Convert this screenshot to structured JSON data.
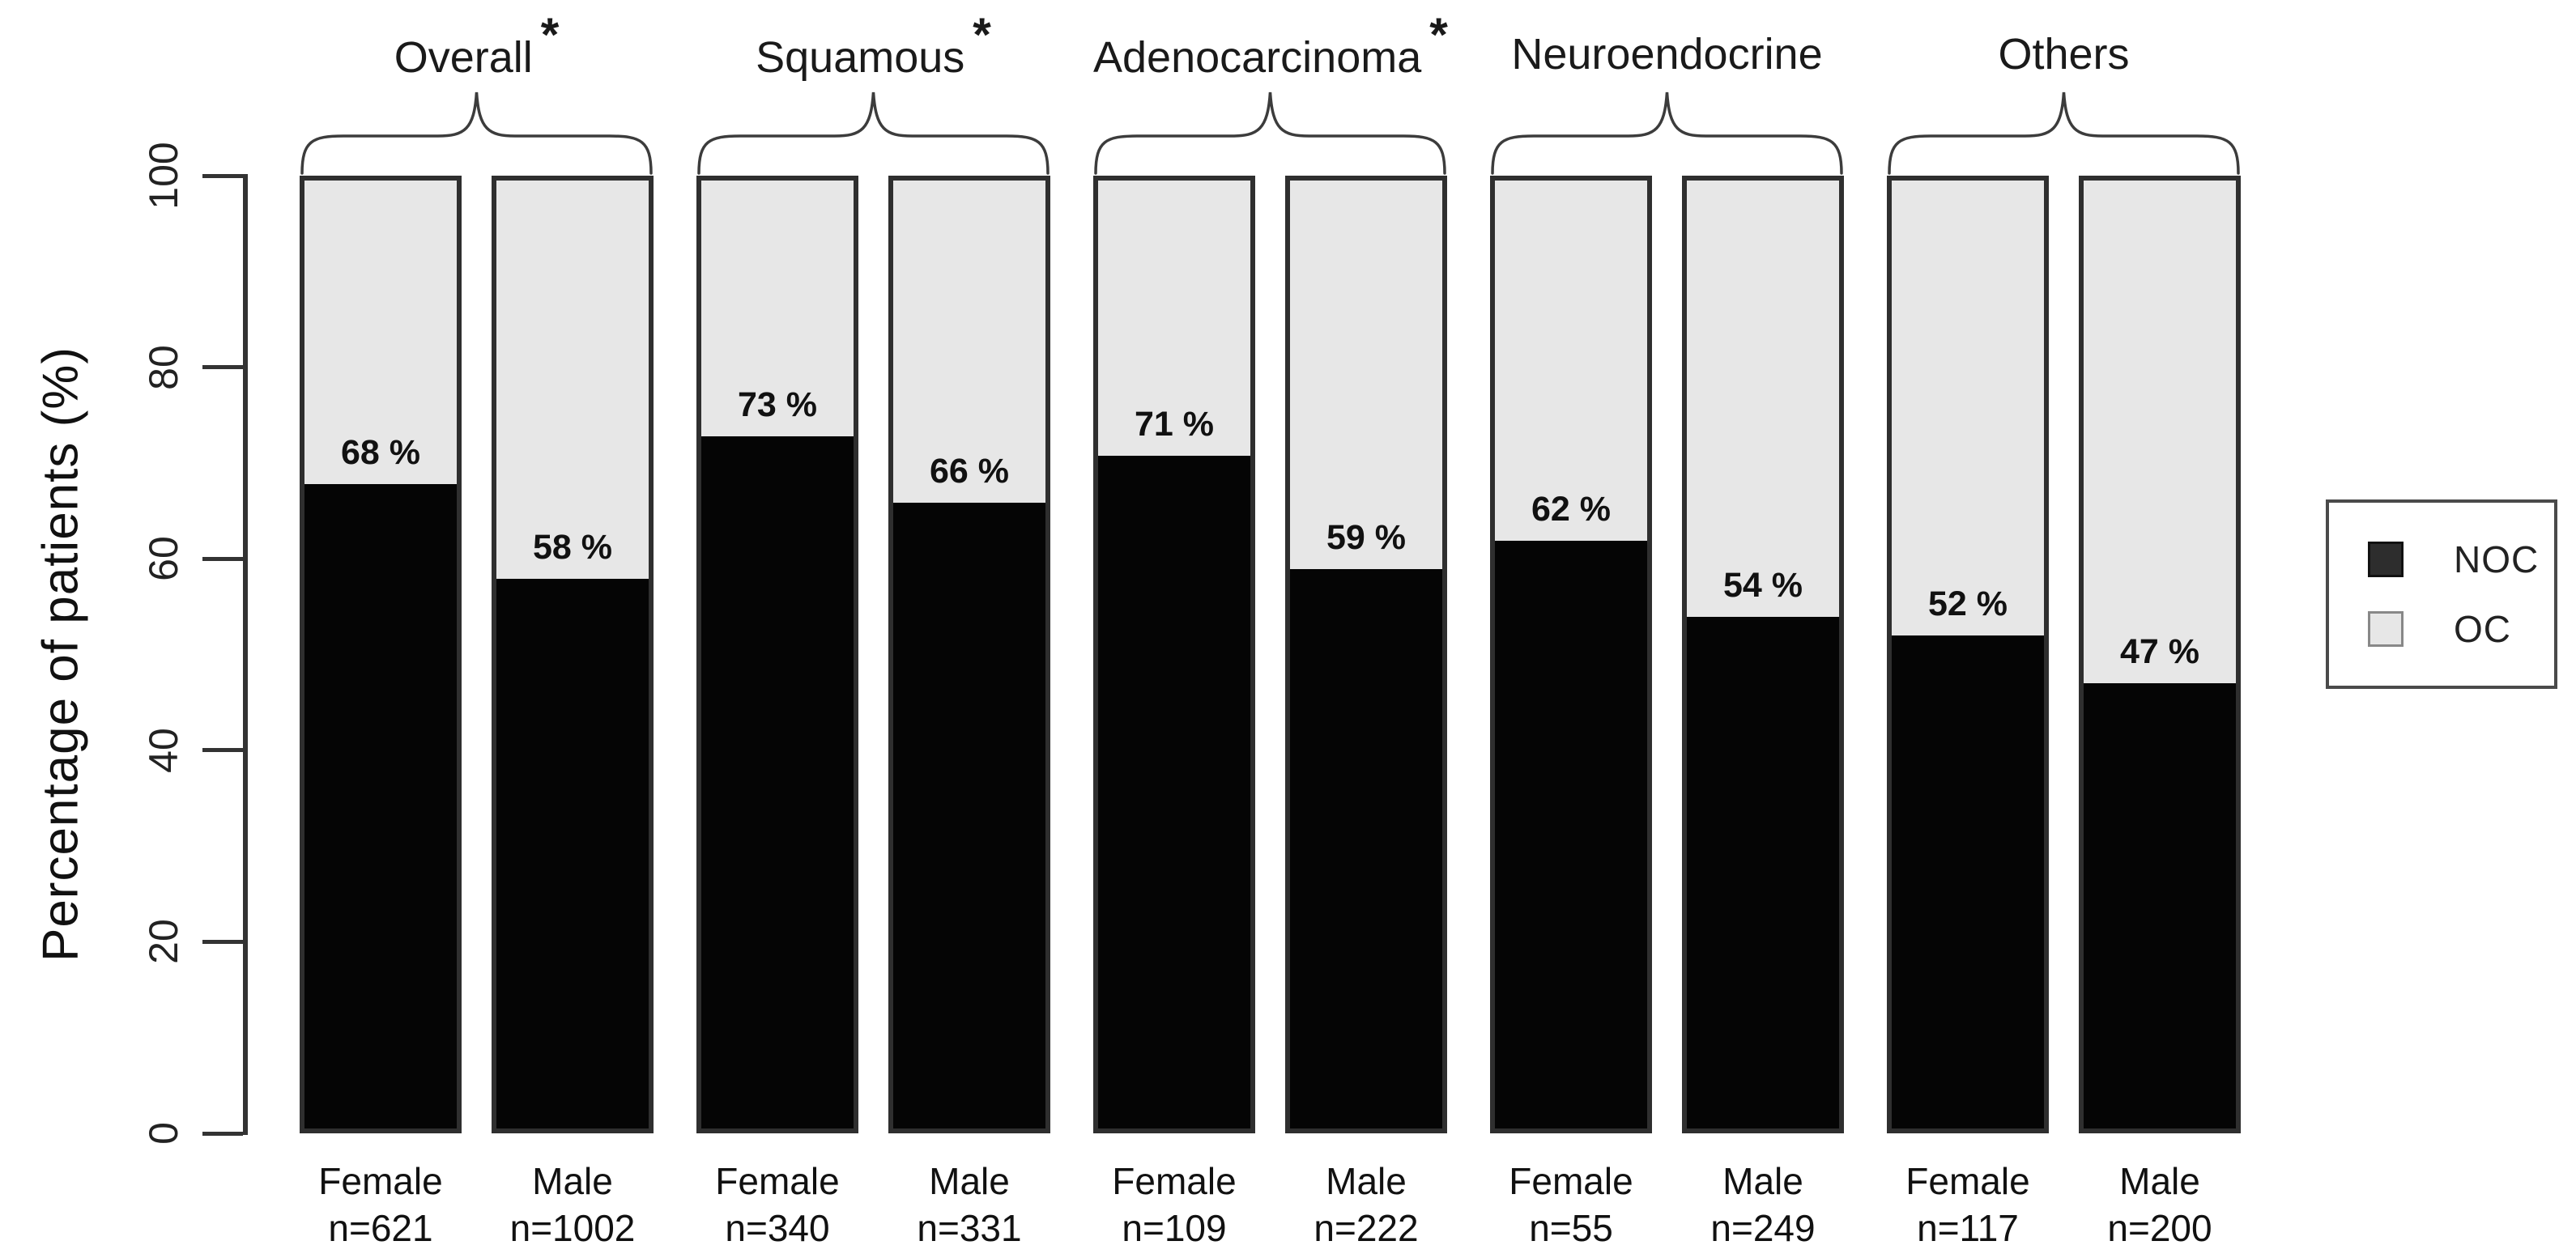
{
  "chart_data": {
    "type": "bar",
    "stacked": true,
    "ylabel": "Percentage of patients (%)",
    "ylim": [
      0,
      100
    ],
    "yticks": [
      "0",
      "20",
      "40",
      "60",
      "80",
      "100"
    ],
    "legend_position": "right",
    "legend": [
      {
        "name": "NOC",
        "color": "#2d2d2d"
      },
      {
        "name": "OC",
        "color": "#e7e7e7"
      }
    ],
    "groups": [
      {
        "label": "Overall",
        "significance": "*",
        "bars": [
          {
            "sex": "Female",
            "n": "n=621",
            "noc_pct": 68,
            "oc_pct": 32,
            "label": "68 %"
          },
          {
            "sex": "Male",
            "n": "n=1002",
            "noc_pct": 58,
            "oc_pct": 42,
            "label": "58 %"
          }
        ]
      },
      {
        "label": "Squamous",
        "significance": "*",
        "bars": [
          {
            "sex": "Female",
            "n": "n=340",
            "noc_pct": 73,
            "oc_pct": 27,
            "label": "73 %"
          },
          {
            "sex": "Male",
            "n": "n=331",
            "noc_pct": 66,
            "oc_pct": 34,
            "label": "66 %"
          }
        ]
      },
      {
        "label": "Adenocarcinoma",
        "significance": "*",
        "bars": [
          {
            "sex": "Female",
            "n": "n=109",
            "noc_pct": 71,
            "oc_pct": 29,
            "label": "71 %"
          },
          {
            "sex": "Male",
            "n": "n=222",
            "noc_pct": 59,
            "oc_pct": 41,
            "label": "59 %"
          }
        ]
      },
      {
        "label": "Neuroendocrine",
        "significance": "",
        "bars": [
          {
            "sex": "Female",
            "n": "n=55",
            "noc_pct": 62,
            "oc_pct": 38,
            "label": "62 %"
          },
          {
            "sex": "Male",
            "n": "n=249",
            "noc_pct": 54,
            "oc_pct": 46,
            "label": "54 %"
          }
        ]
      },
      {
        "label": "Others",
        "significance": "",
        "bars": [
          {
            "sex": "Female",
            "n": "n=117",
            "noc_pct": 52,
            "oc_pct": 48,
            "label": "52 %"
          },
          {
            "sex": "Male",
            "n": "n=200",
            "noc_pct": 47,
            "oc_pct": 53,
            "label": "47 %"
          }
        ]
      }
    ]
  },
  "colors": {
    "noc_fill": "#050505",
    "oc_fill": "#e7e7e7",
    "bar_border": "#2f2f2f",
    "axis": "#333333",
    "text": "#111111"
  }
}
